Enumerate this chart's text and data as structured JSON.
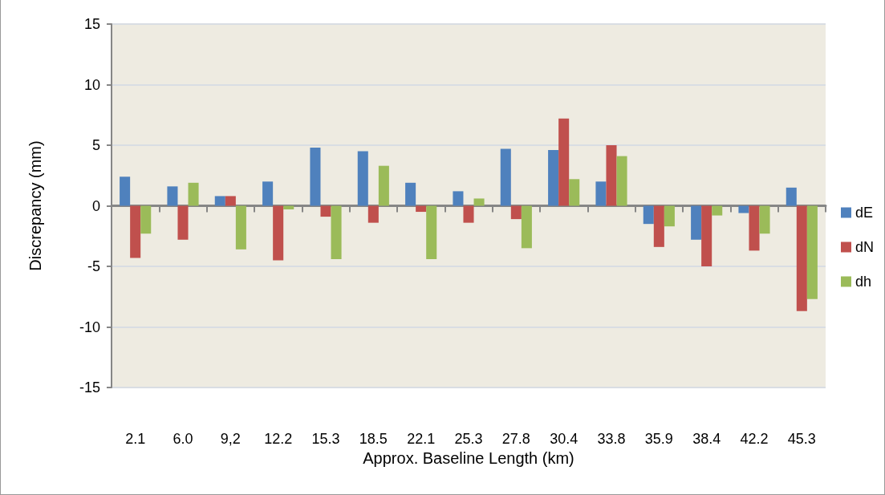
{
  "chart_data": {
    "type": "bar",
    "xlabel": "Approx. Baseline Length (km)",
    "ylabel": "Discrepancy (mm)",
    "categories": [
      "2.1",
      "6.0",
      "9,2",
      "12.2",
      "15.3",
      "18.5",
      "22.1",
      "25.3",
      "27.8",
      "30.4",
      "33.8",
      "35.9",
      "38.4",
      "42.2",
      "45.3"
    ],
    "series": [
      {
        "name": "dE",
        "color": "#4f81bd",
        "values": [
          2.4,
          1.6,
          0.8,
          2.0,
          4.8,
          4.5,
          1.9,
          1.2,
          4.7,
          4.6,
          2.0,
          -1.5,
          -2.8,
          -0.6,
          1.5
        ]
      },
      {
        "name": "dN",
        "color": "#c0504d",
        "values": [
          -4.3,
          -2.8,
          0.8,
          -4.5,
          -0.9,
          -1.4,
          -0.5,
          -1.4,
          -1.1,
          7.2,
          5.0,
          -3.4,
          -5.0,
          -3.7,
          -8.7
        ]
      },
      {
        "name": "dh",
        "color": "#9bbb59",
        "values": [
          -2.3,
          1.9,
          -3.6,
          -0.3,
          -4.4,
          3.3,
          -4.4,
          0.6,
          -3.5,
          2.2,
          4.1,
          -1.7,
          -0.8,
          -2.3,
          -7.7
        ]
      }
    ],
    "ylim": [
      -15,
      15
    ],
    "yticks": [
      -15,
      -10,
      -5,
      0,
      5,
      10,
      15
    ],
    "grid": "y",
    "legend": "right"
  }
}
